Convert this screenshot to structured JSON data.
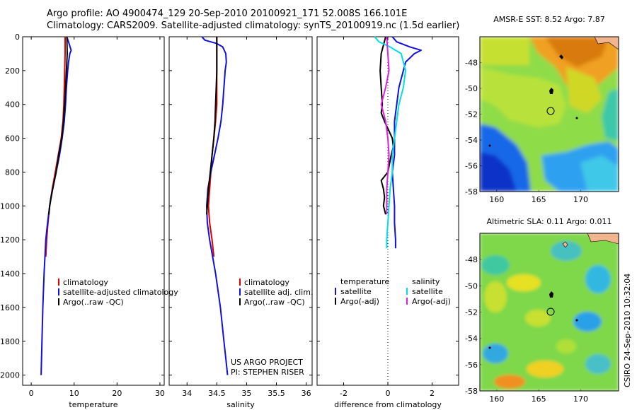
{
  "header": {
    "line1": "Argo profile: AO 4900474_129 20-Sep-2010 20100921_171 52.008S 166.101E",
    "line2": "Climatology: CARS2009. Satellite-adjusted climatology: synTS_20100919.nc (1.5d earlier)"
  },
  "stamp": "CSIRO 24-Sep-2010 10:32:04",
  "colors": {
    "red": "#e00000",
    "blue": "#1010e0",
    "black": "#000000",
    "cyan": "#00e0e8",
    "magenta": "#e020e0"
  },
  "chart_data": [
    {
      "type": "line",
      "xlabel": "temperature",
      "ylabel": "",
      "xlim": [
        -2,
        31
      ],
      "ylim": [
        2060,
        0
      ],
      "xticks": [
        0,
        10,
        20,
        30
      ],
      "yticks": [
        0,
        200,
        400,
        600,
        800,
        1000,
        1200,
        1400,
        1600,
        1800,
        2000
      ],
      "legend": {
        "placement": "bottom-right",
        "entries": [
          "climatology",
          "satellite-adjusted climatology",
          "Argo(..raw -QC)"
        ]
      },
      "series": [
        {
          "name": "climatology",
          "color": "red",
          "depth": [
            0,
            100,
            200,
            300,
            400,
            500,
            600,
            700,
            800,
            900,
            1000,
            1100,
            1200,
            1300
          ],
          "values": [
            7.9,
            7.9,
            7.8,
            7.7,
            7.6,
            7.4,
            7.0,
            6.3,
            5.6,
            4.9,
            4.3,
            3.9,
            3.6,
            3.4
          ]
        },
        {
          "name": "satellite-adjusted climatology",
          "color": "blue",
          "depth": [
            0,
            30,
            80,
            100,
            150,
            200,
            300,
            400,
            500,
            600,
            700,
            800,
            900,
            1000,
            1100,
            1200,
            1300,
            1400,
            1600,
            1800,
            2000
          ],
          "values": [
            8.3,
            8.7,
            9.3,
            9.0,
            8.7,
            8.5,
            8.2,
            8.0,
            7.7,
            7.2,
            6.6,
            5.8,
            5.0,
            4.3,
            3.8,
            3.4,
            3.2,
            3.0,
            2.7,
            2.5,
            2.3
          ]
        },
        {
          "name": "Argo(..raw -QC)",
          "color": "black",
          "depth": [
            0,
            100,
            200,
            300,
            400,
            500,
            600,
            700,
            800,
            900,
            950,
            1000,
            1050
          ],
          "values": [
            8.3,
            8.4,
            8.2,
            8.0,
            7.8,
            7.5,
            7.1,
            6.4,
            5.8,
            5.0,
            4.6,
            4.3,
            4.1
          ]
        }
      ]
    },
    {
      "type": "line",
      "xlabel": "salinity",
      "xlim": [
        33.7,
        36.1
      ],
      "ylim": [
        2060,
        0
      ],
      "xticks": [
        34,
        34.5,
        35,
        35.5,
        36
      ],
      "legend": {
        "placement": "bottom-right",
        "entries": [
          "climatology",
          "satellite adj. clim.",
          "Argo(..raw -QC)"
        ]
      },
      "annotation": [
        "US ARGO PROJECT",
        "PI: STEPHEN RISER"
      ],
      "series": [
        {
          "name": "climatology",
          "color": "red",
          "depth": [
            0,
            100,
            200,
            300,
            400,
            500,
            600,
            700,
            800,
            900,
            1000,
            1100,
            1200,
            1300
          ],
          "values": [
            34.5,
            34.5,
            34.5,
            34.5,
            34.5,
            34.48,
            34.45,
            34.42,
            34.4,
            34.38,
            34.36,
            34.38,
            34.42,
            34.45
          ]
        },
        {
          "name": "satellite adj. clim.",
          "color": "blue",
          "depth": [
            0,
            20,
            40,
            60,
            100,
            150,
            200,
            300,
            400,
            500,
            600,
            700,
            800,
            900,
            1000,
            1100,
            1200,
            1300,
            1400,
            1500,
            1600,
            1700,
            1800,
            1900,
            2000
          ],
          "values": [
            34.25,
            34.3,
            34.5,
            34.6,
            34.65,
            34.66,
            34.64,
            34.62,
            34.6,
            34.57,
            34.52,
            34.46,
            34.4,
            34.35,
            34.33,
            34.34,
            34.38,
            34.43,
            34.48,
            34.52,
            34.56,
            34.59,
            34.62,
            34.65,
            34.68
          ]
        },
        {
          "name": "Argo(..raw -QC)",
          "color": "black",
          "depth": [
            0,
            100,
            200,
            300,
            400,
            500,
            600,
            700,
            800,
            900,
            1000,
            1050
          ],
          "values": [
            34.5,
            34.5,
            34.5,
            34.49,
            34.48,
            34.47,
            34.45,
            34.42,
            34.39,
            34.36,
            34.34,
            34.33
          ]
        }
      ]
    },
    {
      "type": "line",
      "xlabel": "difference from climatology",
      "xlim": [
        -3.2,
        3.2
      ],
      "ylim": [
        2060,
        0
      ],
      "xticks": [
        -2,
        0,
        2
      ],
      "legend": {
        "placement": "bottom",
        "groups": [
          {
            "heading": "temperature",
            "entries": [
              "satellite",
              "Argo(-adj)"
            ]
          },
          {
            "heading": "salinity",
            "entries": [
              "satellite",
              "Argo(-adj)"
            ]
          }
        ]
      },
      "series": [
        {
          "name": "temperature satellite",
          "color": "blue",
          "depth": [
            0,
            30,
            60,
            80,
            100,
            150,
            200,
            300,
            400,
            500,
            600,
            700,
            800,
            900,
            1000,
            1100,
            1200,
            1250
          ],
          "values": [
            0.2,
            0.4,
            1.0,
            1.5,
            1.2,
            0.8,
            0.7,
            0.5,
            0.4,
            0.3,
            0.3,
            0.3,
            0.2,
            0.25,
            0.3,
            0.3,
            0.35,
            0.35
          ]
        },
        {
          "name": "temperature Argo(-adj)",
          "color": "black",
          "depth": [
            0,
            100,
            200,
            300,
            400,
            450,
            500,
            600,
            650,
            700,
            800,
            850,
            900,
            950,
            1000,
            1050
          ],
          "values": [
            -0.1,
            -0.3,
            -0.35,
            -0.3,
            -0.25,
            -0.3,
            -0.15,
            0.2,
            0.25,
            0.15,
            0.0,
            -0.3,
            -0.2,
            -0.15,
            -0.2,
            -0.1
          ]
        },
        {
          "name": "salinity satellite",
          "color": "cyan",
          "depth": [
            0,
            30,
            60,
            100,
            200,
            300,
            400,
            500,
            600,
            700,
            800,
            900,
            1000,
            1100,
            1200,
            1250
          ],
          "values": [
            -0.6,
            -0.4,
            0.1,
            0.6,
            0.8,
            0.7,
            0.5,
            0.4,
            0.3,
            0.2,
            0.2,
            0.1,
            0.05,
            0.0,
            -0.05,
            -0.05
          ]
        },
        {
          "name": "salinity Argo(-adj)",
          "color": "magenta",
          "depth": [
            0,
            100,
            200,
            300,
            400,
            500,
            600,
            700,
            800,
            900,
            1000,
            1050
          ],
          "values": [
            -0.05,
            0.0,
            0.05,
            -0.1,
            -0.3,
            -0.1,
            0.0,
            0.05,
            0.0,
            -0.05,
            -0.05,
            -0.05
          ]
        }
      ]
    },
    {
      "type": "heatmap",
      "title": "AMSR-E SST: 8.52 Argo: 7.87",
      "xlim": [
        158,
        174.5
      ],
      "ylim": [
        -58,
        -46
      ],
      "xticks": [
        160,
        165,
        170
      ],
      "yticks": [
        -48,
        -50,
        -52,
        -54,
        -56,
        -58
      ],
      "argo_position": {
        "lon": 166.1,
        "lat": -52.0
      }
    },
    {
      "type": "heatmap",
      "title": "Altimetric SLA: 0.11 Argo: 0.011",
      "xlim": [
        158,
        174.5
      ],
      "ylim": [
        -58,
        -46
      ],
      "xticks": [
        160,
        165,
        170
      ],
      "yticks": [
        -48,
        -50,
        -52,
        -54,
        -56,
        -58
      ],
      "argo_position": {
        "lon": 166.1,
        "lat": -52.0
      }
    }
  ]
}
